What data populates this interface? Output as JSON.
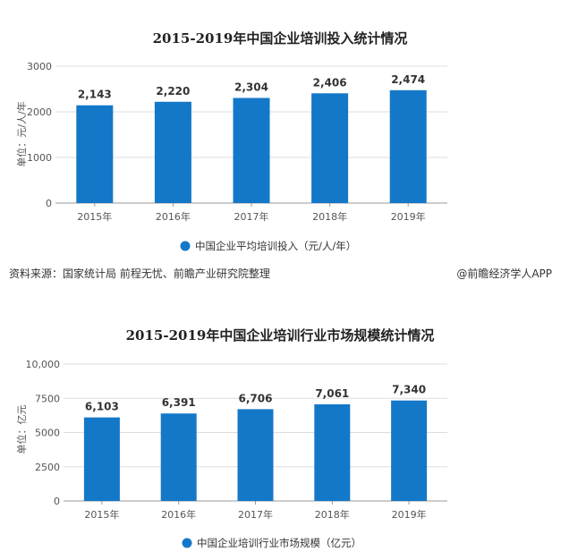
{
  "colors": {
    "bar": "#1478c8",
    "grid": "#dddddd",
    "axis": "#999999"
  },
  "footer": {
    "source": "资料来源：国家统计局 前程无忧、前瞻产业研究院整理",
    "credit": "@前瞻经济学人APP"
  },
  "chart_data": [
    {
      "type": "bar",
      "title": "2015-2019年中国企业培训投入统计情况",
      "ylabel": "单位：元/人/年",
      "categories": [
        "2015年",
        "2016年",
        "2017年",
        "2018年",
        "2019年"
      ],
      "series": [
        {
          "name": "中国企业平均培训投入（元/人/年）",
          "values": [
            2143,
            2220,
            2304,
            2406,
            2474
          ]
        }
      ],
      "data_labels": [
        "2,143",
        "2,220",
        "2,304",
        "2,406",
        "2,474"
      ],
      "yticks": [
        "0",
        "1000",
        "2000",
        "3000"
      ],
      "ylim": [
        0,
        3000
      ],
      "grid": true,
      "legend": "bottom"
    },
    {
      "type": "bar",
      "title": "2015-2019年中国企业培训行业市场规模统计情况",
      "ylabel": "单位：亿元",
      "categories": [
        "2015年",
        "2016年",
        "2017年",
        "2018年",
        "2019年"
      ],
      "series": [
        {
          "name": "中国企业培训行业市场规模（亿元）",
          "values": [
            6103,
            6391,
            6706,
            7061,
            7340
          ]
        }
      ],
      "data_labels": [
        "6,103",
        "6,391",
        "6,706",
        "7,061",
        "7,340"
      ],
      "yticks": [
        "0",
        "2500",
        "5000",
        "7500",
        "10,000"
      ],
      "ylim": [
        0,
        10000
      ],
      "grid": true,
      "legend": "bottom"
    }
  ]
}
